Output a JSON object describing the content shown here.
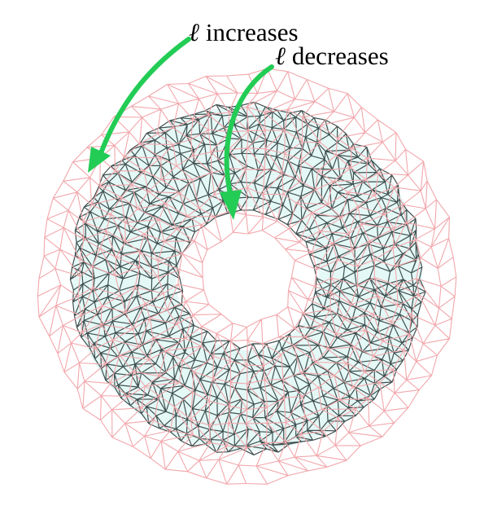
{
  "annotations": {
    "increase_symbol": "ℓ",
    "increase_text": "increases",
    "decrease_symbol": "ℓ",
    "decrease_text": "decreases"
  },
  "colors": {
    "background": "#ffffff",
    "outer_mesh": "#f2a7ac",
    "inner_mesh": "#3f4f4f",
    "inner_fill": "#e4f8f6",
    "arrow": "#22cc55",
    "text": "#000000"
  },
  "meshes": [
    {
      "name": "outer-pink-torus-mesh",
      "role": "larger wireframe surface"
    },
    {
      "name": "inner-dark-torus-mesh",
      "role": "smaller shaded wireframe surface"
    }
  ]
}
